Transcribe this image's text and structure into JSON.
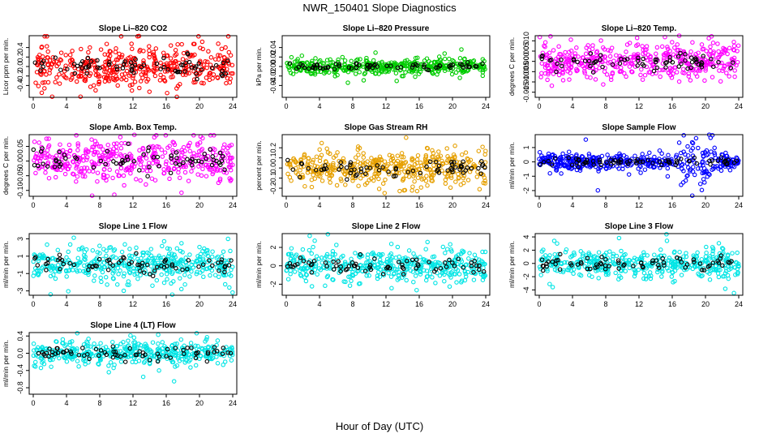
{
  "figure": {
    "title": "NWR_150401  Slope Diagnostics",
    "xlabel": "Hour of Day (UTC)"
  },
  "chart_data": [
    {
      "type": "scatter",
      "title": "Slope Li–820 CO2",
      "ylabel": "Licor ppm per min.",
      "xlim": [
        0,
        24
      ],
      "xticks": [
        0,
        4,
        8,
        12,
        16,
        20,
        24
      ],
      "ylim": [
        -0.65,
        0.65
      ],
      "yticks": [
        -0.4,
        -0.2,
        0,
        0.2,
        0.4
      ],
      "ytick_labels": [
        "-0.4",
        "-0.2",
        "0.0",
        "0.2",
        "0.4"
      ],
      "color": "#ff0000",
      "spread": 0.22,
      "seed": 11
    },
    {
      "type": "scatter",
      "title": "Slope Li–820 Pressure",
      "ylabel": "kPa per min.",
      "xlim": [
        0,
        24
      ],
      "xticks": [
        0,
        4,
        8,
        12,
        16,
        20,
        24
      ],
      "ylim": [
        -0.065,
        0.065
      ],
      "yticks": [
        -0.04,
        -0.02,
        0,
        0.02,
        0.04
      ],
      "ytick_labels": [
        "-0.04",
        "-0.02",
        "0.00",
        "0.02",
        "0.04"
      ],
      "color": "#00cc00",
      "spread": 0.008,
      "seed": 23
    },
    {
      "type": "scatter",
      "title": "Slope Li–820 Temp.",
      "ylabel": "degrees C per min.",
      "xlim": [
        0,
        24
      ],
      "xticks": [
        0,
        4,
        8,
        12,
        16,
        20,
        24
      ],
      "ylim": [
        -0.0175,
        0.0125
      ],
      "yticks": [
        -0.015,
        -0.01,
        -0.005,
        0,
        0.005,
        0.01
      ],
      "ytick_labels": [
        "-0.015",
        "-0.010",
        "-0.005",
        "0.000",
        "0.005",
        "0.010"
      ],
      "color": "#ff00ff",
      "spread": 0.0045,
      "seed": 37
    },
    {
      "type": "scatter",
      "title": "Slope Amb. Box Temp.",
      "ylabel": "degrees C per min.",
      "xlim": [
        0,
        24
      ],
      "xticks": [
        0,
        4,
        8,
        12,
        16,
        20,
        24
      ],
      "ylim": [
        -0.12,
        0.09
      ],
      "yticks": [
        -0.1,
        -0.05,
        0,
        0.05
      ],
      "ytick_labels": [
        "-0.10",
        "-0.05",
        "0.00",
        "0.05"
      ],
      "color": "#ff00ff",
      "spread": 0.035,
      "seed": 41
    },
    {
      "type": "scatter",
      "title": "Slope Gas Stream RH",
      "ylabel": "percent per min.",
      "xlim": [
        0,
        24
      ],
      "xticks": [
        0,
        4,
        8,
        12,
        16,
        20,
        24
      ],
      "ylim": [
        -0.28,
        0.33
      ],
      "yticks": [
        -0.2,
        -0.1,
        0,
        0.1,
        0.2
      ],
      "ytick_labels": [
        "-0.2",
        "-0.1",
        "0.0",
        "0.1",
        "0.2"
      ],
      "color": "#e6a000",
      "spread": 0.09,
      "seed": 53
    },
    {
      "type": "scatter",
      "title": "Slope Sample Flow",
      "ylabel": "ml/min per min.",
      "xlim": [
        0,
        24
      ],
      "xticks": [
        0,
        4,
        8,
        12,
        16,
        20,
        24
      ],
      "ylim": [
        -2.4,
        1.9
      ],
      "yticks": [
        -2,
        -1,
        0,
        1
      ],
      "ytick_labels": [
        "-2",
        "-1",
        "0",
        "1"
      ],
      "color": "#0000ff",
      "spread": 0.25,
      "seed": 67
    },
    {
      "type": "scatter",
      "title": "Slope Line 1 Flow",
      "ylabel": "ml/min per min.",
      "xlim": [
        0,
        24
      ],
      "xticks": [
        0,
        4,
        8,
        12,
        16,
        20,
        24
      ],
      "ylim": [
        -3.5,
        3.6
      ],
      "yticks": [
        -3,
        -1,
        1,
        3
      ],
      "ytick_labels": [
        "-3",
        "-1",
        "1",
        "3"
      ],
      "color": "#00e5e5",
      "spread": 0.9,
      "seed": 71
    },
    {
      "type": "scatter",
      "title": "Slope Line 2 Flow",
      "ylabel": "ml/min per min.",
      "xlim": [
        0,
        24
      ],
      "xticks": [
        0,
        4,
        8,
        12,
        16,
        20,
        24
      ],
      "ylim": [
        -3.2,
        3.5
      ],
      "yticks": [
        -2,
        0,
        2
      ],
      "ytick_labels": [
        "-2",
        "0",
        "2"
      ],
      "color": "#00e5e5",
      "spread": 0.9,
      "seed": 83
    },
    {
      "type": "scatter",
      "title": "Slope Line 3 Flow",
      "ylabel": "ml/min per min.",
      "xlim": [
        0,
        24
      ],
      "xticks": [
        0,
        4,
        8,
        12,
        16,
        20,
        24
      ],
      "ylim": [
        -4.8,
        4.5
      ],
      "yticks": [
        -4,
        -2,
        0,
        2,
        4
      ],
      "ytick_labels": [
        "-4",
        "-2",
        "0",
        "2",
        "4"
      ],
      "color": "#00e5e5",
      "spread": 1.1,
      "seed": 97
    },
    {
      "type": "scatter",
      "title": "Slope Line 4 (LT) Flow",
      "ylabel": "ml/min per min.",
      "xlim": [
        0,
        24
      ],
      "xticks": [
        0,
        4,
        8,
        12,
        16,
        20,
        24
      ],
      "ylim": [
        -0.95,
        0.48
      ],
      "yticks": [
        -0.8,
        -0.4,
        0,
        0.4
      ],
      "ytick_labels": [
        "-0.8",
        "-0.4",
        "0.0",
        "0.4"
      ],
      "color": "#00e5e5",
      "spread": 0.13,
      "seed": 101
    }
  ]
}
